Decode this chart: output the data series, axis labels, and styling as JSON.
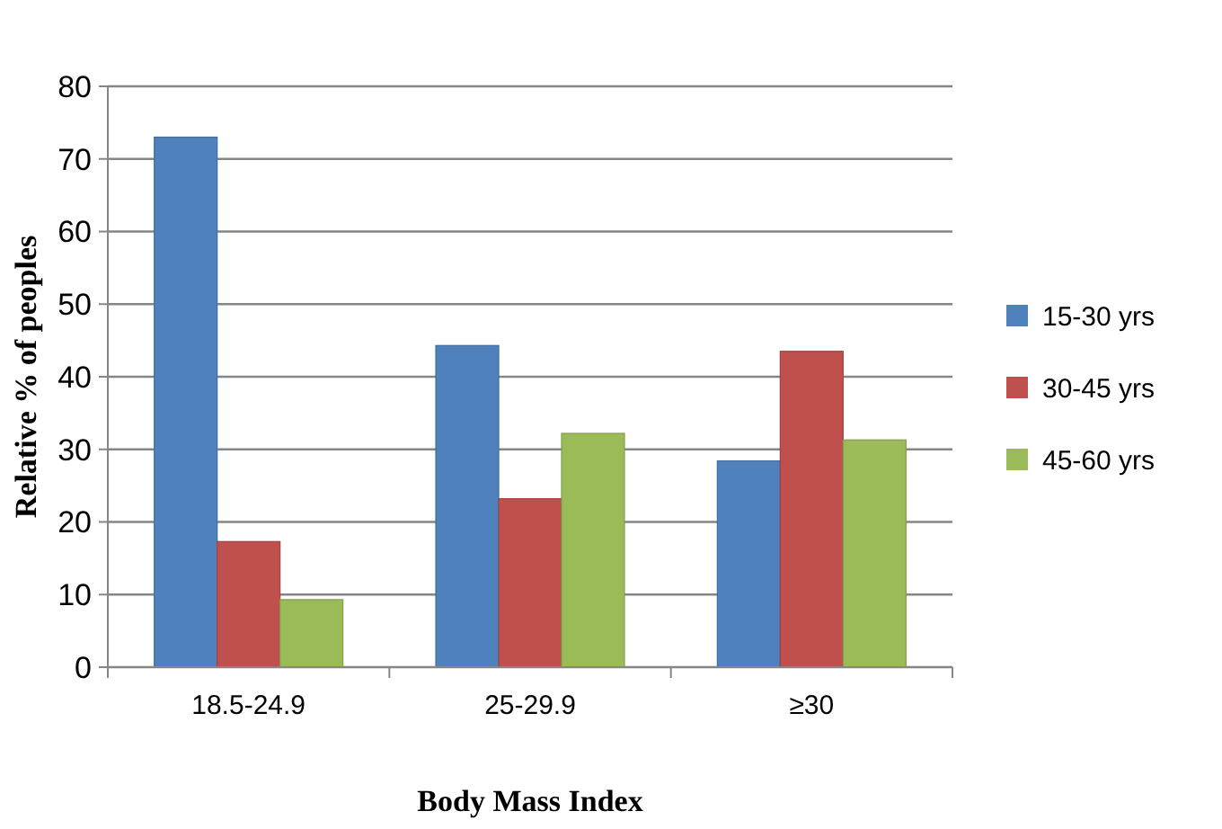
{
  "chart_data": {
    "type": "bar",
    "categories": [
      "18.5-24.9",
      "25-29.9",
      "≥30"
    ],
    "series": [
      {
        "name": "15-30 yrs",
        "color": "#4f81bd",
        "values": [
          73,
          44.3,
          28.4
        ]
      },
      {
        "name": "30-45 yrs",
        "color": "#c0504d",
        "values": [
          17.3,
          23.2,
          43.5
        ]
      },
      {
        "name": "45-60 yrs",
        "color": "#9bbb59",
        "values": [
          9.3,
          32.2,
          31.3
        ]
      }
    ],
    "ylim": [
      0,
      80
    ],
    "yticks": [
      0,
      10,
      20,
      30,
      40,
      50,
      60,
      70,
      80
    ],
    "grid": "y",
    "legend": "right",
    "xlabel": "Body Mass Index",
    "ylabel": "Relative % of peoples"
  }
}
